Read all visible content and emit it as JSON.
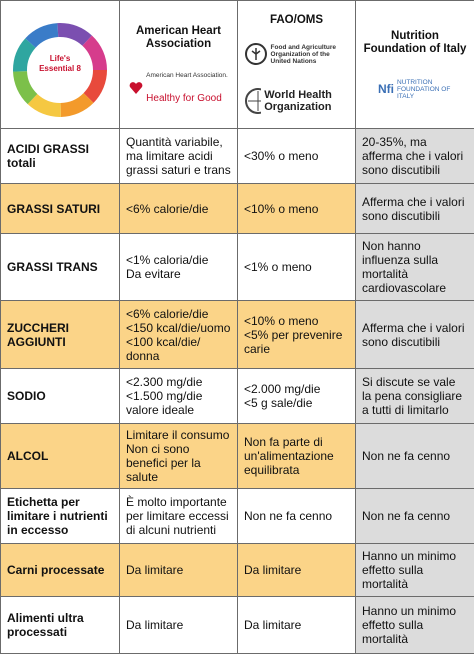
{
  "header": {
    "logo": "Life's Essential 8",
    "columns": [
      {
        "title": "American Heart Association",
        "logo": "Healthy for Good",
        "logo_small": "American Heart Association."
      },
      {
        "title": "FAO/OMS",
        "logo": "Food and Agriculture Organization of the United Nations",
        "logo2": "World Health Organization"
      },
      {
        "title": "Nutrition Foundation of Italy",
        "logo": "NUTRITION FOUNDATION OF ITALY"
      }
    ]
  },
  "table": {
    "rows": [
      [
        "ACIDI GRASSI totali",
        "Quantità variabile, ma limitare acidi grassi saturi e trans",
        "<30% o meno",
        "20-35%, ma afferma che i valori sono discutibili"
      ],
      [
        "GRASSI SATURI",
        "<6% calorie/die",
        "<10% o meno",
        "Afferma che i valori sono discutibili"
      ],
      [
        "GRASSI TRANS",
        "<1% caloria/die\nDa evitare",
        "<1% o meno",
        "Non hanno influenza sulla mortalità cardiovascolare"
      ],
      [
        "ZUCCHERI AGGIUNTI",
        "<6% calorie/die\n<150 kcal/die/uomo\n<100 kcal/die/ donna",
        "<10% o meno\n<5% per prevenire carie",
        "Afferma che i valori sono discutibili"
      ],
      [
        "SODIO",
        "<2.300 mg/die\n<1.500 mg/die valore ideale",
        "<2.000 mg/die\n<5 g sale/die",
        "Si discute se vale la pena consigliare a tutti di limitarlo"
      ],
      [
        "ALCOL",
        "Limitare il consumo\nNon ci sono benefici per la salute",
        "Non fa parte di un'alimentazione equilibrata",
        "Non ne fa cenno"
      ],
      [
        "Etichetta per limitare i nutrienti in eccesso",
        "È molto importante per limitare eccessi di alcuni nutrienti",
        "Non ne fa cenno",
        "Non ne fa cenno"
      ],
      [
        "Carni processate",
        "Da limitare",
        "Da limitare",
        "Hanno un minimo effetto sulla mortalità"
      ],
      [
        "Alimenti ultra processati",
        "Da limitare",
        "Da limitare",
        "Hanno un minimo effetto sulla mortalità"
      ]
    ]
  }
}
